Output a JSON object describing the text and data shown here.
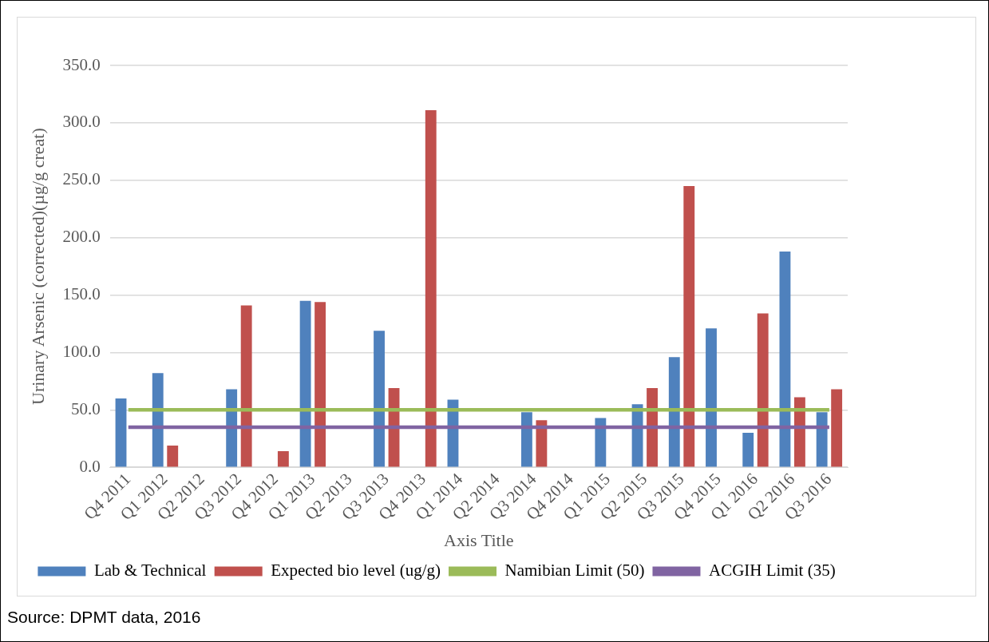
{
  "chart_data": {
    "type": "bar",
    "xlabel": "Axis Title",
    "ylabel": "Urinary Arsenic (corrected)(µg/g creat)",
    "categories": [
      "Q4 2011",
      "Q1 2012",
      "Q2 2012",
      "Q3 2012",
      "Q4 2012",
      "Q1 2013",
      "Q2 2013",
      "Q3 2013",
      "Q4 2013",
      "Q1 2014",
      "Q2 2014",
      "Q3 2014",
      "Q4 2014",
      "Q1 2015",
      "Q2 2015",
      "Q3 2015",
      "Q4 2015",
      "Q1 2016",
      "Q2 2016",
      "Q3 2016"
    ],
    "series": [
      {
        "name": "Lab & Technical",
        "color": "#4f81bd",
        "values": [
          60,
          82,
          null,
          68,
          null,
          145,
          null,
          119,
          null,
          59,
          null,
          48,
          null,
          43,
          55,
          96,
          121,
          30,
          188,
          48
        ]
      },
      {
        "name": "Expected bio level (ug/g)",
        "color": "#c0504d",
        "values": [
          null,
          19,
          null,
          141,
          14,
          144,
          null,
          69,
          311,
          null,
          null,
          41,
          null,
          null,
          69,
          245,
          null,
          134,
          61,
          68
        ]
      },
      {
        "name": "Namibian Limit (50)",
        "type": "line",
        "color": "#9bbb59",
        "values": [
          50,
          50,
          50,
          50,
          50,
          50,
          50,
          50,
          50,
          50,
          50,
          50,
          50,
          50,
          50,
          50,
          50,
          50,
          50,
          50
        ]
      },
      {
        "name": "ACGIH Limit (35)",
        "type": "line",
        "color": "#8064a2",
        "values": [
          35,
          35,
          35,
          35,
          35,
          35,
          35,
          35,
          35,
          35,
          35,
          35,
          35,
          35,
          35,
          35,
          35,
          35,
          35,
          35
        ]
      }
    ],
    "ylim": [
      0,
      350
    ],
    "yticks": [
      {
        "value": 0,
        "label": "0.0"
      },
      {
        "value": 50,
        "label": "50.0"
      },
      {
        "value": 100,
        "label": "100.0"
      },
      {
        "value": 150,
        "label": "150.0"
      },
      {
        "value": 200,
        "label": "200.0"
      },
      {
        "value": 250,
        "label": "250.0"
      },
      {
        "value": 300,
        "label": "300.0"
      },
      {
        "value": 350,
        "label": "350.0"
      }
    ],
    "grid": "y",
    "legend": "bottom",
    "marker": "none",
    "line_style": "solid",
    "annotations": [
      "Source: DPMT data, 2016"
    ]
  }
}
